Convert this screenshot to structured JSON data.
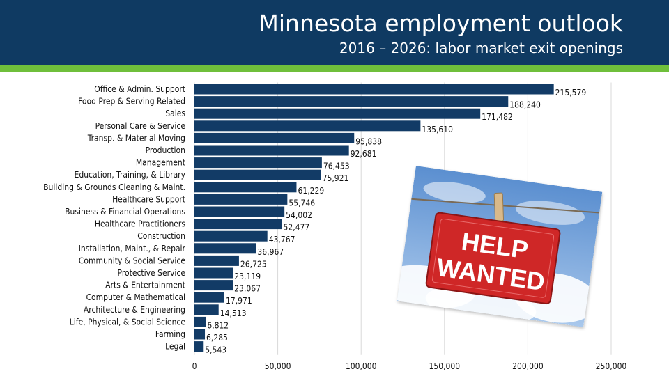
{
  "header": {
    "title": "Minnesota employment outlook",
    "subtitle": "2016 – 2026: labor market exit openings"
  },
  "colors": {
    "header_bg": "#0f3a62",
    "accent_band": "#6fbf3b",
    "bar": "#123b66",
    "sign": "#d42a2a"
  },
  "image": {
    "name": "help-wanted-sign",
    "text": "HELP WANTED"
  },
  "chart_data": {
    "type": "bar",
    "orientation": "horizontal",
    "categories": [
      "Office & Admin. Support",
      "Food Prep & Serving Related",
      "Sales",
      "Personal Care & Service",
      "Transp. & Material Moving",
      "Production",
      "Management",
      "Education, Training, & Library",
      "Building & Grounds Cleaning & Maint.",
      "Healthcare Support",
      "Business & Financial Operations",
      "Healthcare Practitioners",
      "Construction",
      "Installation, Maint., & Repair",
      "Community & Social Service",
      "Protective Service",
      "Arts & Entertainment",
      "Computer & Mathematical",
      "Architecture & Engineering",
      "Life, Physical, & Social Science",
      "Farming",
      "Legal"
    ],
    "values": [
      215579,
      188240,
      171482,
      135610,
      95838,
      92681,
      76453,
      75921,
      61229,
      55746,
      54002,
      52477,
      43767,
      36967,
      26725,
      23119,
      23067,
      17971,
      14513,
      6812,
      6285,
      5543
    ],
    "value_labels": [
      "215,579",
      "188,240",
      "171,482",
      "135,610",
      "95,838",
      "92,681",
      "76,453",
      "75,921",
      "61,229",
      "55,746",
      "54,002",
      "52,477",
      "43,767",
      "36,967",
      "26,725",
      "23,119",
      "23,067",
      "17,971",
      "14,513",
      "6,812",
      "6,285",
      "5,543"
    ],
    "xlim": [
      0,
      250000
    ],
    "x_ticks": [
      0,
      50000,
      100000,
      150000,
      200000,
      250000
    ],
    "x_tick_labels": [
      "0",
      "50,000",
      "100,000",
      "150,000",
      "200,000",
      "250,000"
    ],
    "grid": true
  }
}
